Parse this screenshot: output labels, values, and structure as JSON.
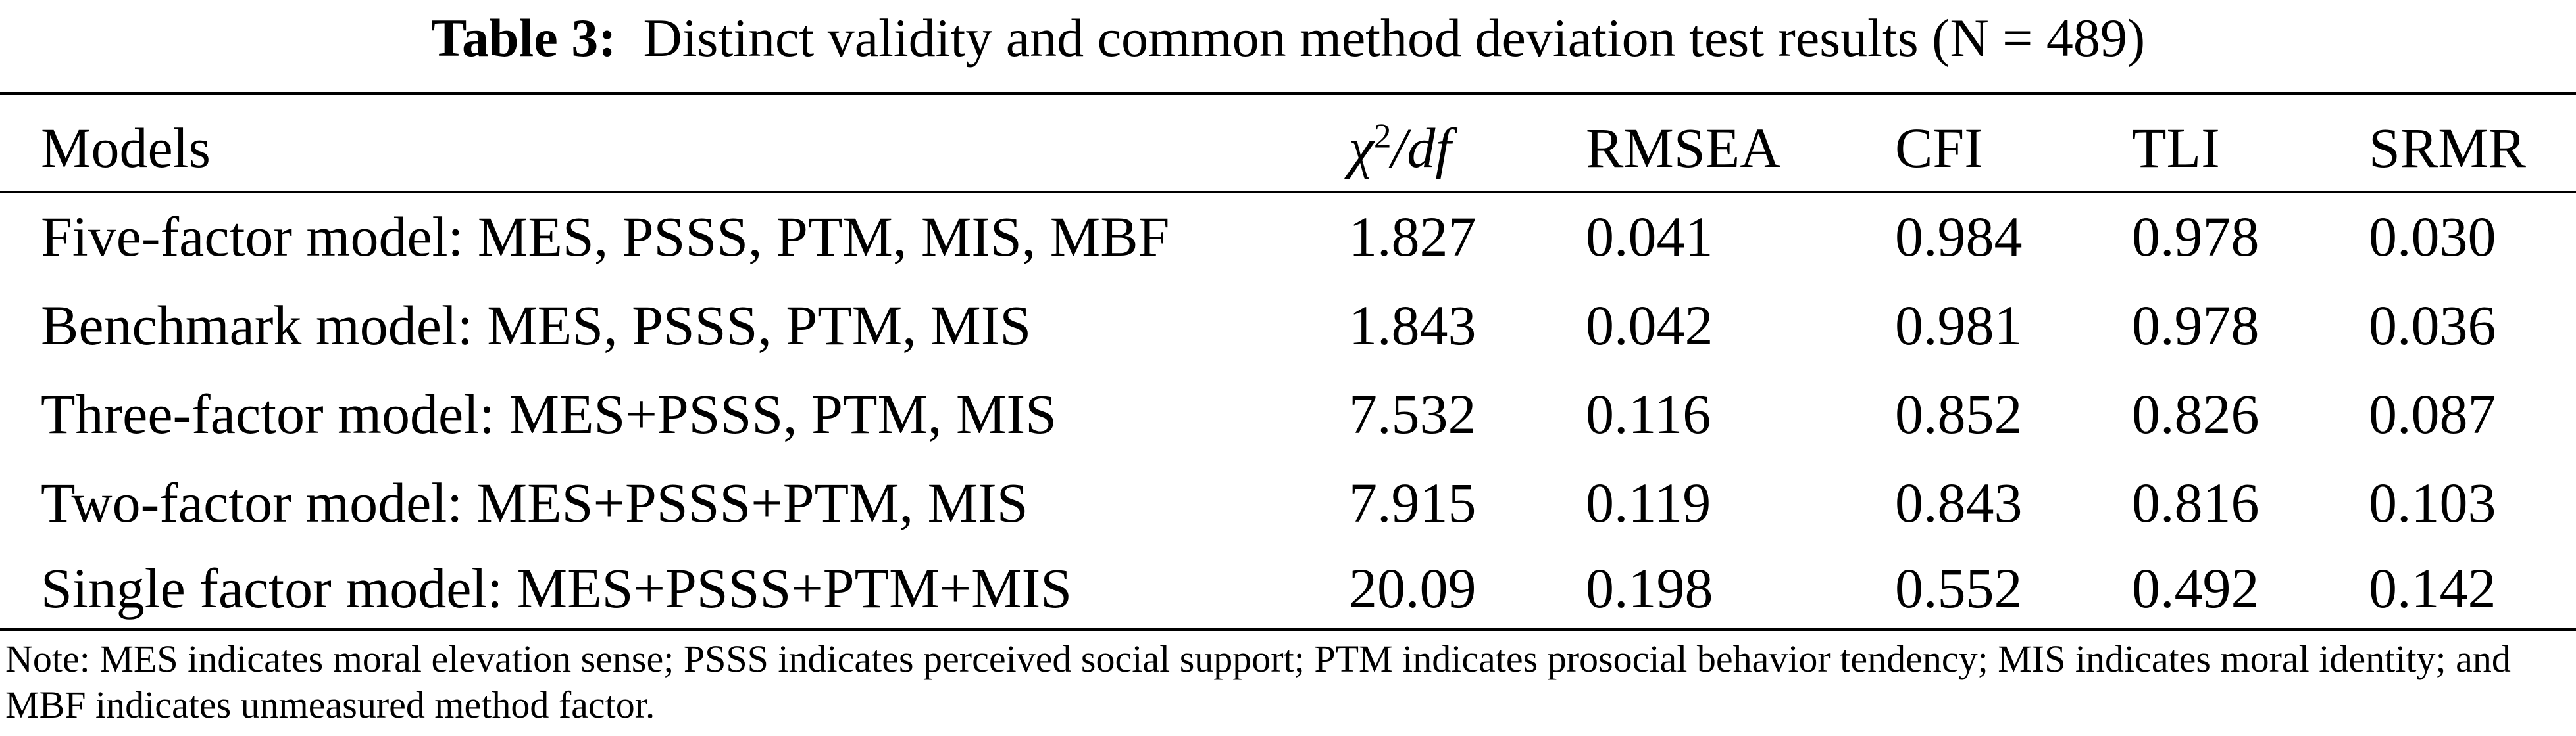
{
  "caption": {
    "label": "Table 3:",
    "text": "Distinct validity and common method deviation test results (N = 489)"
  },
  "table": {
    "headers": {
      "models": "Models",
      "chi_base": "χ",
      "chi_sup": "2",
      "chi_rest": "/df",
      "rmsea": "RMSEA",
      "cfi": "CFI",
      "tli": "TLI",
      "srmr": "SRMR"
    },
    "rows": [
      {
        "model": "Five-factor model: MES, PSSS, PTM, MIS, MBF",
        "chi2df": "1.827",
        "rmsea": "0.041",
        "cfi": "0.984",
        "tli": "0.978",
        "srmr": "0.030"
      },
      {
        "model": "Benchmark model: MES, PSSS, PTM, MIS",
        "chi2df": "1.843",
        "rmsea": "0.042",
        "cfi": "0.981",
        "tli": "0.978",
        "srmr": "0.036"
      },
      {
        "model": "Three-factor model: MES+PSSS, PTM, MIS",
        "chi2df": "7.532",
        "rmsea": "0.116",
        "cfi": "0.852",
        "tli": "0.826",
        "srmr": "0.087"
      },
      {
        "model": "Two-factor model: MES+PSSS+PTM, MIS",
        "chi2df": "7.915",
        "rmsea": "0.119",
        "cfi": "0.843",
        "tli": "0.816",
        "srmr": "0.103"
      },
      {
        "model": "Single factor model: MES+PSSS+PTM+MIS",
        "chi2df": "20.09",
        "rmsea": "0.198",
        "cfi": "0.552",
        "tli": "0.492",
        "srmr": "0.142"
      }
    ]
  },
  "note": "Note: MES indicates moral elevation sense; PSSS indicates perceived social support; PTM indicates prosocial behavior tendency; MIS indicates moral identity; and MBF indicates unmeasured method factor."
}
